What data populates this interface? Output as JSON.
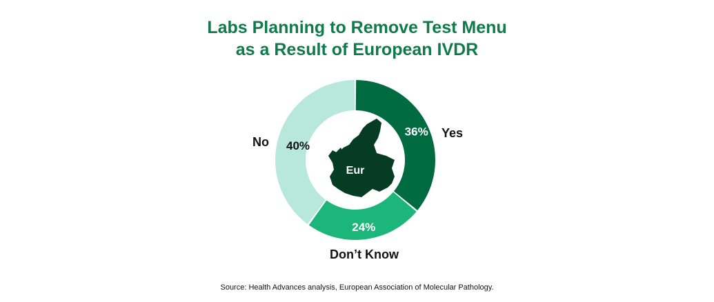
{
  "chart_data": {
    "type": "pie",
    "title_lines": [
      "Labs Planning to Remove Test Menu",
      "as a Result of European IVDR"
    ],
    "slices": [
      {
        "label": "Yes",
        "value": 36,
        "value_label": "36%",
        "color": "#006a41"
      },
      {
        "label": "Don’t Know",
        "value": 24,
        "value_label": "24%",
        "color": "#1cb57a"
      },
      {
        "label": "No",
        "value": 40,
        "value_label": "40%",
        "color": "#b8e8d9"
      }
    ],
    "center_label": "Eur",
    "center_image": "europe-map",
    "donut": true,
    "start_angle": "12 o'clock",
    "direction": "clockwise"
  },
  "source": "Source:  Health Advances analysis, European Association of Molecular Pathology."
}
